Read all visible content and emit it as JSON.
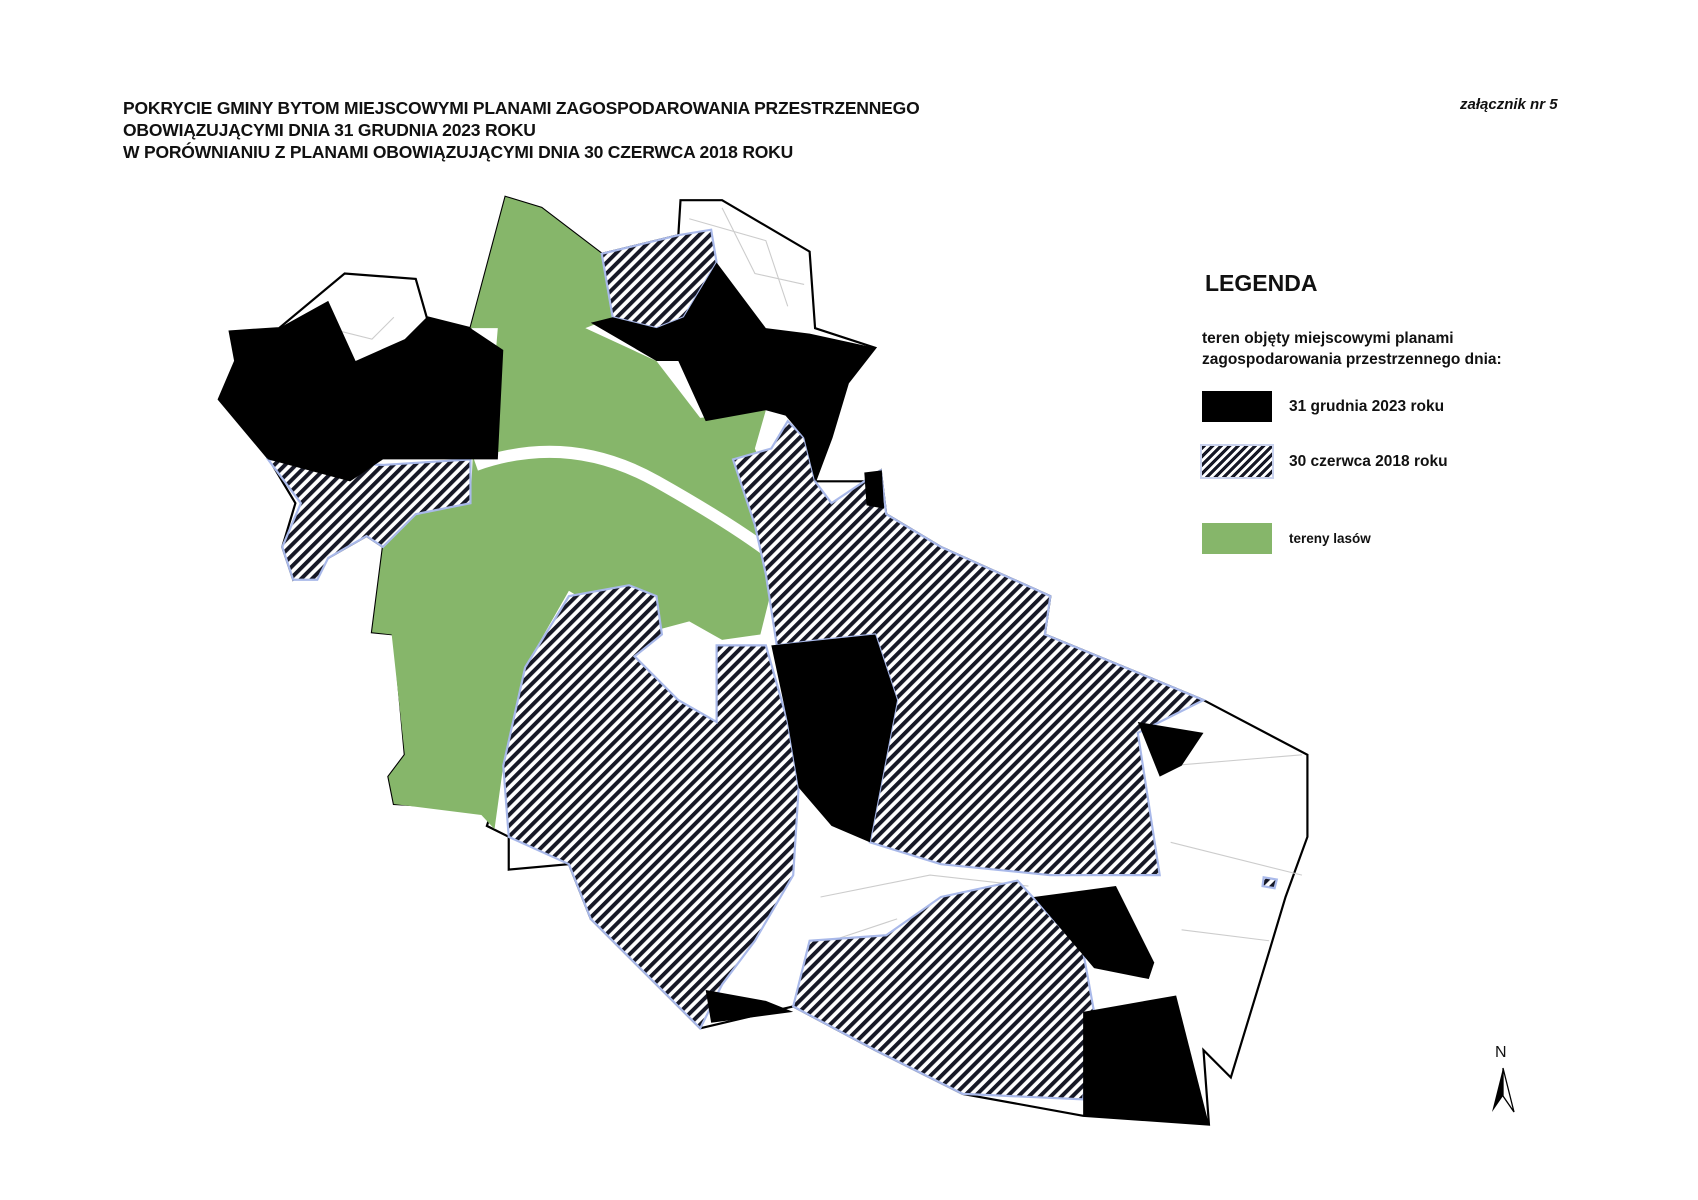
{
  "title": {
    "lines": [
      "POKRYCIE GMINY BYTOM MIEJSCOWYMI PLANAMI ZAGOSPODAROWANIA PRZESTRZENNEGO",
      "OBOWIĄZUJĄCYMI DNIA 31 GRUDNIA 2023 ROKU",
      "W PORÓWNIANIU Z PLANAMI OBOWIĄZUJĄCYMI DNIA 30 CZERWCA 2018 ROKU"
    ]
  },
  "annex": "załącznik nr 5",
  "legend": {
    "title": "LEGENDA",
    "subtitle_lines": [
      "teren objęty miejscowymi planami",
      "zagospodarowania przestrzennego dnia:"
    ],
    "items": [
      {
        "label": "31 grudnia 2023 roku",
        "color": "#000000"
      },
      {
        "label": "30 czerwca 2018 roku",
        "color": "#161826",
        "pattern": "diagonal-hatch",
        "outline": "#a9b9ea"
      },
      {
        "label": "tereny lasów",
        "color": "#86b66a"
      }
    ]
  },
  "north_arrow": {
    "label": "N"
  }
}
